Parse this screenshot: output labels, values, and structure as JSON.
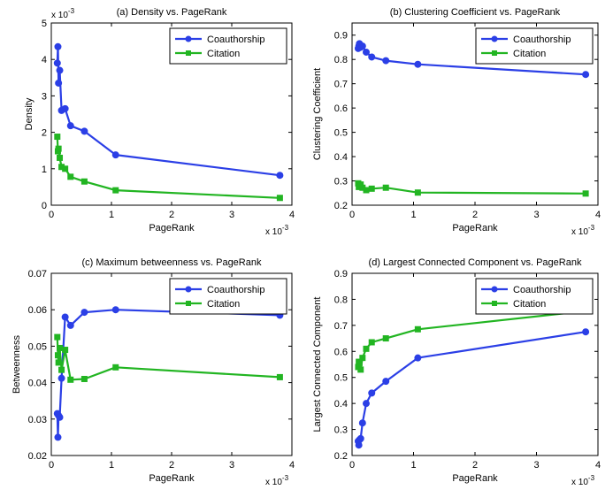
{
  "colors": {
    "coauthorship": "#2b3fe6",
    "citation": "#22b522"
  },
  "chart_data": [
    {
      "type": "line",
      "title": "(a) Density vs. PageRank",
      "xlabel": "PageRank",
      "ylabel": "Density",
      "xlim": [
        0,
        4
      ],
      "ylim": [
        0,
        5
      ],
      "xticks": [
        "0",
        "1",
        "2",
        "3",
        "4"
      ],
      "yticks": [
        "0",
        "1",
        "2",
        "3",
        "4",
        "5"
      ],
      "x_scale": {
        "base": "x 10",
        "exp": "-3"
      },
      "y_scale": {
        "base": "x 10",
        "exp": "-3"
      },
      "legend": "top-right",
      "series": [
        {
          "name": "Coauthorship",
          "marker": "circle",
          "x": [
            0.1,
            0.11,
            0.12,
            0.14,
            0.17,
            0.23,
            0.32,
            0.55,
            1.07,
            3.8
          ],
          "y": [
            3.9,
            4.35,
            3.35,
            3.7,
            2.6,
            2.65,
            2.18,
            2.03,
            1.38,
            0.82
          ]
        },
        {
          "name": "Citation",
          "marker": "square",
          "x": [
            0.1,
            0.11,
            0.12,
            0.14,
            0.17,
            0.23,
            0.32,
            0.55,
            1.07,
            3.8
          ],
          "y": [
            1.88,
            1.48,
            1.55,
            1.3,
            1.05,
            1.0,
            0.78,
            0.65,
            0.41,
            0.2
          ]
        }
      ]
    },
    {
      "type": "line",
      "title": "(b) Clustering Coefficient vs. PageRank",
      "xlabel": "PageRank",
      "ylabel": "Clustering Coefficient",
      "xlim": [
        0,
        4
      ],
      "ylim": [
        0.2,
        0.95
      ],
      "xticks": [
        "0",
        "1",
        "2",
        "3",
        "4"
      ],
      "yticks": [
        "0.2",
        "0.3",
        "0.4",
        "0.5",
        "0.6",
        "0.7",
        "0.8",
        "0.9"
      ],
      "x_scale": {
        "base": "x 10",
        "exp": "-3"
      },
      "y_scale": null,
      "legend": "top-right",
      "series": [
        {
          "name": "Coauthorship",
          "marker": "circle",
          "x": [
            0.1,
            0.11,
            0.12,
            0.14,
            0.17,
            0.23,
            0.32,
            0.55,
            1.07,
            3.8
          ],
          "y": [
            0.845,
            0.855,
            0.865,
            0.85,
            0.855,
            0.83,
            0.81,
            0.795,
            0.78,
            0.738
          ]
        },
        {
          "name": "Citation",
          "marker": "square",
          "x": [
            0.1,
            0.11,
            0.12,
            0.14,
            0.17,
            0.23,
            0.32,
            0.55,
            1.07,
            3.8
          ],
          "y": [
            0.29,
            0.275,
            0.28,
            0.285,
            0.272,
            0.262,
            0.268,
            0.272,
            0.252,
            0.248
          ]
        }
      ]
    },
    {
      "type": "line",
      "title": "(c) Maximum betweenness vs. PageRank",
      "xlabel": "PageRank",
      "ylabel": "Betweenness",
      "xlim": [
        0,
        4
      ],
      "ylim": [
        0.02,
        0.07
      ],
      "xticks": [
        "0",
        "1",
        "2",
        "3",
        "4"
      ],
      "yticks": [
        "0.02",
        "0.03",
        "0.04",
        "0.05",
        "0.06",
        "0.07"
      ],
      "x_scale": {
        "base": "x 10",
        "exp": "-3"
      },
      "y_scale": null,
      "legend": "top-right",
      "series": [
        {
          "name": "Coauthorship",
          "marker": "circle",
          "x": [
            0.1,
            0.11,
            0.12,
            0.14,
            0.17,
            0.23,
            0.32,
            0.55,
            1.07,
            3.8
          ],
          "y": [
            0.0315,
            0.025,
            0.031,
            0.0305,
            0.0412,
            0.058,
            0.0557,
            0.0593,
            0.06,
            0.0585
          ]
        },
        {
          "name": "Citation",
          "marker": "square",
          "x": [
            0.1,
            0.11,
            0.12,
            0.14,
            0.17,
            0.23,
            0.32,
            0.55,
            1.07,
            3.8
          ],
          "y": [
            0.0525,
            0.0475,
            0.0455,
            0.0495,
            0.0435,
            0.049,
            0.0408,
            0.041,
            0.0442,
            0.0415
          ]
        }
      ]
    },
    {
      "type": "line",
      "title": "(d) Largest Connected Component vs. PageRank",
      "xlabel": "PageRank",
      "ylabel": "Largest Connected Component",
      "xlim": [
        0,
        4
      ],
      "ylim": [
        0.2,
        0.9
      ],
      "xticks": [
        "0",
        "1",
        "2",
        "3",
        "4"
      ],
      "yticks": [
        "0.2",
        "0.3",
        "0.4",
        "0.5",
        "0.6",
        "0.7",
        "0.8",
        "0.9"
      ],
      "x_scale": {
        "base": "x 10",
        "exp": "-3"
      },
      "y_scale": null,
      "legend": "top-right",
      "series": [
        {
          "name": "Coauthorship",
          "marker": "circle",
          "x": [
            0.1,
            0.11,
            0.12,
            0.14,
            0.17,
            0.23,
            0.32,
            0.55,
            1.07,
            3.8
          ],
          "y": [
            0.255,
            0.24,
            0.26,
            0.265,
            0.325,
            0.4,
            0.44,
            0.485,
            0.575,
            0.675
          ]
        },
        {
          "name": "Citation",
          "marker": "square",
          "x": [
            0.1,
            0.11,
            0.12,
            0.14,
            0.17,
            0.23,
            0.32,
            0.55,
            1.07,
            3.8
          ],
          "y": [
            0.54,
            0.56,
            0.555,
            0.53,
            0.575,
            0.61,
            0.635,
            0.65,
            0.685,
            0.755
          ]
        }
      ]
    }
  ]
}
